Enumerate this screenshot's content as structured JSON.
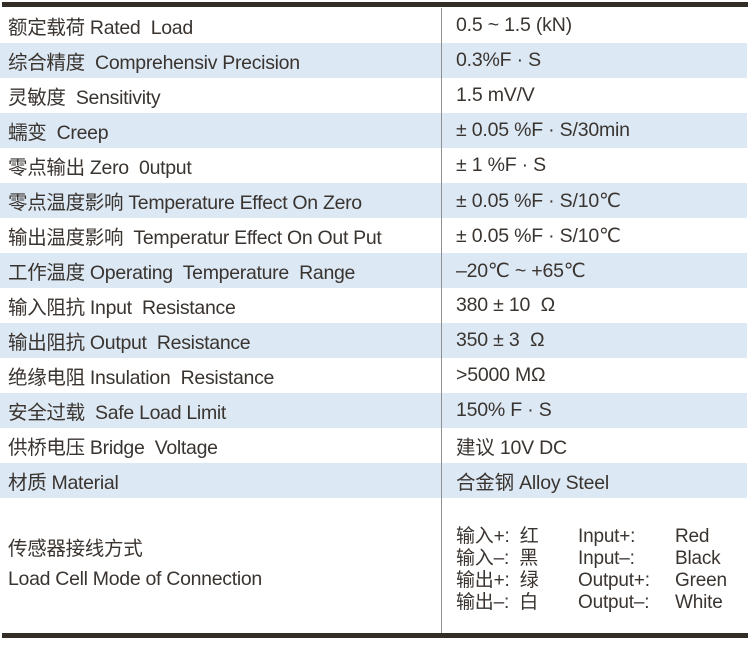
{
  "colors": {
    "stripe": "#dce8f3",
    "bar": "#332d28",
    "divider": "#8f8f8f",
    "text": "#3a3430"
  },
  "table": {
    "rows": [
      {
        "label": "额定载荷 Rated  Load",
        "value": "0.5 ~ 1.5 (kN)"
      },
      {
        "label": "综合精度  Comprehensiv Precision",
        "value": "0.3%F · S"
      },
      {
        "label": "灵敏度  Sensitivity",
        "value": "1.5 mV/V"
      },
      {
        "label": "蠕变  Creep",
        "value": "± 0.05 %F · S/30min"
      },
      {
        "label": "零点输出 Zero  0utput",
        "value": "± 1 %F · S"
      },
      {
        "label": "零点温度影响 Temperature Effect On Zero",
        "value": "± 0.05 %F · S/10℃"
      },
      {
        "label": "输出温度影响  Temperatur Effect On Out Put",
        "value": "± 0.05 %F · S/10℃"
      },
      {
        "label": "工作温度 Operating  Temperature  Range",
        "value": "–20℃ ~ +65℃"
      },
      {
        "label": "输入阻抗 Input  Resistance",
        "value": "380 ± 10  Ω"
      },
      {
        "label": "输出阻抗 Output  Resistance",
        "value": "350 ± 3  Ω"
      },
      {
        "label": "绝缘电阻 Insulation  Resistance",
        "value": ">5000 MΩ"
      },
      {
        "label": "安全过载  Safe Load Limit",
        "value": "150% F · S"
      },
      {
        "label": "供桥电压 Bridge  Voltage",
        "value": "建议 10V DC"
      },
      {
        "label": "材质 Material",
        "value": "合金钢 Alloy Steel"
      }
    ],
    "connection": {
      "label_cn": "传感器接线方式",
      "label_en": "Load Cell Mode of Connection",
      "wiring": [
        {
          "cn": "输入+:  红",
          "en": "Input+:",
          "color": "Red"
        },
        {
          "cn": "输入–:  黑",
          "en": "Input–:",
          "color": "Black"
        },
        {
          "cn": "输出+:  绿",
          "en": "Output+:",
          "color": "Green"
        },
        {
          "cn": "输出–:  白",
          "en": "Output–:",
          "color": "White"
        }
      ]
    }
  }
}
